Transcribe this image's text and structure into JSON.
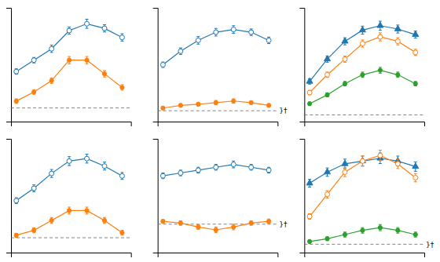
{
  "chart_data": [
    {
      "type": "line",
      "x": [
        1,
        2,
        3,
        4,
        5,
        6,
        7
      ],
      "xlim": [
        0.7,
        7.5
      ],
      "xticks": [],
      "ylim": [
        -0.3,
        2.2
      ],
      "yticks": [],
      "tick_labels": false,
      "grid": false,
      "series": [
        {
          "marker": "open_circle",
          "line_style": "solid",
          "values": [
            0.8,
            1.05,
            1.3,
            1.7,
            1.85,
            1.75,
            1.55
          ],
          "errors": [
            0.06,
            0.06,
            0.08,
            0.08,
            0.1,
            0.08,
            0.08
          ]
        },
        {
          "marker": "circle",
          "line_style": "solid",
          "values": [
            0.15,
            0.35,
            0.6,
            1.05,
            1.05,
            0.75,
            0.45
          ],
          "errors": [
            0.05,
            0.05,
            0.06,
            0.08,
            0.08,
            0.07,
            0.06
          ]
        }
      ],
      "reference_lines": [
        {
          "y": 0.0,
          "line_style": "dashed"
        }
      ]
    },
    {
      "type": "line",
      "x": [
        1,
        2,
        3,
        4,
        5,
        6,
        7
      ],
      "xlim": [
        0.7,
        7.5
      ],
      "xticks": [],
      "ylim": [
        -0.2,
        1.9
      ],
      "yticks": [],
      "tick_labels": false,
      "grid": false,
      "series": [
        {
          "marker": "open_circle",
          "line_style": "solid",
          "values": [
            0.85,
            1.1,
            1.3,
            1.45,
            1.5,
            1.45,
            1.3
          ],
          "errors": [
            0.05,
            0.06,
            0.07,
            0.07,
            0.07,
            0.06,
            0.06
          ]
        },
        {
          "marker": "circle",
          "line_style": "solid",
          "values": [
            0.05,
            0.1,
            0.12,
            0.15,
            0.18,
            0.15,
            0.1
          ],
          "errors": [
            0.03,
            0.03,
            0.03,
            0.04,
            0.04,
            0.03,
            0.03
          ]
        }
      ],
      "reference_lines": [
        {
          "y": 0.0,
          "line_style": "dashed"
        }
      ],
      "annotations": [
        {
          "text": "}†",
          "y": 0.0
        }
      ]
    },
    {
      "type": "line",
      "x": [
        1,
        2,
        3,
        4,
        5,
        6,
        7
      ],
      "xlim": [
        0.7,
        7.5
      ],
      "xticks": [],
      "ylim": [
        -0.3,
        4.8
      ],
      "yticks": [],
      "tick_labels": false,
      "grid": false,
      "series": [
        {
          "marker": "triangle",
          "line_style": "solid",
          "values": [
            1.5,
            2.5,
            3.3,
            3.8,
            4.0,
            3.85,
            3.6
          ],
          "errors": [
            0.12,
            0.14,
            0.16,
            0.18,
            0.2,
            0.18,
            0.16
          ]
        },
        {
          "marker": "open_circle",
          "line_style": "solid",
          "values": [
            1.0,
            1.8,
            2.5,
            3.2,
            3.5,
            3.3,
            2.8
          ],
          "errors": [
            0.1,
            0.12,
            0.14,
            0.16,
            0.18,
            0.16,
            0.14
          ]
        },
        {
          "marker": "circle",
          "line_style": "solid",
          "values": [
            0.5,
            0.9,
            1.4,
            1.8,
            2.0,
            1.8,
            1.4
          ],
          "errors": [
            0.08,
            0.09,
            0.1,
            0.12,
            0.13,
            0.12,
            0.1
          ]
        }
      ],
      "reference_lines": [
        {
          "y": 0.0,
          "line_style": "dashed"
        }
      ]
    },
    {
      "type": "line",
      "x": [
        1,
        2,
        3,
        4,
        5,
        6,
        7
      ],
      "xlim": [
        0.7,
        7.5
      ],
      "xticks": [],
      "ylim": [
        -0.3,
        2.0
      ],
      "yticks": [],
      "tick_labels": false,
      "grid": false,
      "series": [
        {
          "marker": "open_circle",
          "line_style": "solid",
          "values": [
            0.75,
            1.0,
            1.3,
            1.55,
            1.6,
            1.45,
            1.25
          ],
          "errors": [
            0.06,
            0.07,
            0.08,
            0.09,
            0.09,
            0.08,
            0.07
          ]
        },
        {
          "marker": "circle",
          "line_style": "solid",
          "values": [
            0.05,
            0.15,
            0.35,
            0.55,
            0.55,
            0.35,
            0.1
          ],
          "errors": [
            0.04,
            0.05,
            0.06,
            0.07,
            0.07,
            0.06,
            0.05
          ]
        }
      ],
      "reference_lines": [
        {
          "y": 0.0,
          "line_style": "dashed"
        }
      ]
    },
    {
      "type": "line",
      "x": [
        1,
        2,
        3,
        4,
        5,
        6,
        7
      ],
      "xlim": [
        0.7,
        7.5
      ],
      "xticks": [],
      "ylim": [
        -0.5,
        1.5
      ],
      "yticks": [],
      "tick_labels": false,
      "grid": false,
      "series": [
        {
          "marker": "open_circle",
          "line_style": "solid",
          "values": [
            0.85,
            0.9,
            0.95,
            1.0,
            1.05,
            1.0,
            0.95
          ],
          "errors": [
            0.05,
            0.05,
            0.05,
            0.05,
            0.06,
            0.05,
            0.05
          ]
        },
        {
          "marker": "circle",
          "line_style": "solid",
          "values": [
            0.05,
            0.02,
            -0.05,
            -0.1,
            -0.05,
            0.02,
            0.05
          ],
          "errors": [
            0.03,
            0.04,
            0.04,
            0.05,
            0.05,
            0.04,
            0.04
          ]
        }
      ],
      "reference_lines": [
        {
          "y": 0.0,
          "line_style": "dashed"
        }
      ],
      "annotations": [
        {
          "text": "}†",
          "y": 0.0
        }
      ]
    },
    {
      "type": "line",
      "x": [
        1,
        2,
        3,
        4,
        5,
        6,
        7
      ],
      "xlim": [
        0.7,
        7.5
      ],
      "xticks": [],
      "ylim": [
        -0.3,
        3.8
      ],
      "yticks": [],
      "tick_labels": false,
      "grid": false,
      "series": [
        {
          "marker": "triangle",
          "line_style": "solid",
          "values": [
            2.2,
            2.6,
            2.9,
            3.0,
            3.1,
            3.0,
            2.8
          ],
          "errors": [
            0.14,
            0.15,
            0.17,
            0.18,
            0.19,
            0.18,
            0.17
          ]
        },
        {
          "marker": "open_circle",
          "line_style": "solid",
          "values": [
            1.0,
            1.8,
            2.6,
            3.0,
            3.2,
            2.9,
            2.4
          ],
          "errors": [
            0.1,
            0.13,
            0.16,
            0.18,
            0.19,
            0.17,
            0.15
          ]
        },
        {
          "marker": "circle",
          "line_style": "solid",
          "values": [
            0.1,
            0.2,
            0.35,
            0.5,
            0.6,
            0.5,
            0.35
          ],
          "errors": [
            0.06,
            0.07,
            0.09,
            0.1,
            0.11,
            0.1,
            0.09
          ]
        }
      ],
      "reference_lines": [
        {
          "y": 0.0,
          "line_style": "dashed"
        }
      ],
      "annotations": [
        {
          "text": "}†",
          "y": 0.0
        }
      ]
    }
  ]
}
